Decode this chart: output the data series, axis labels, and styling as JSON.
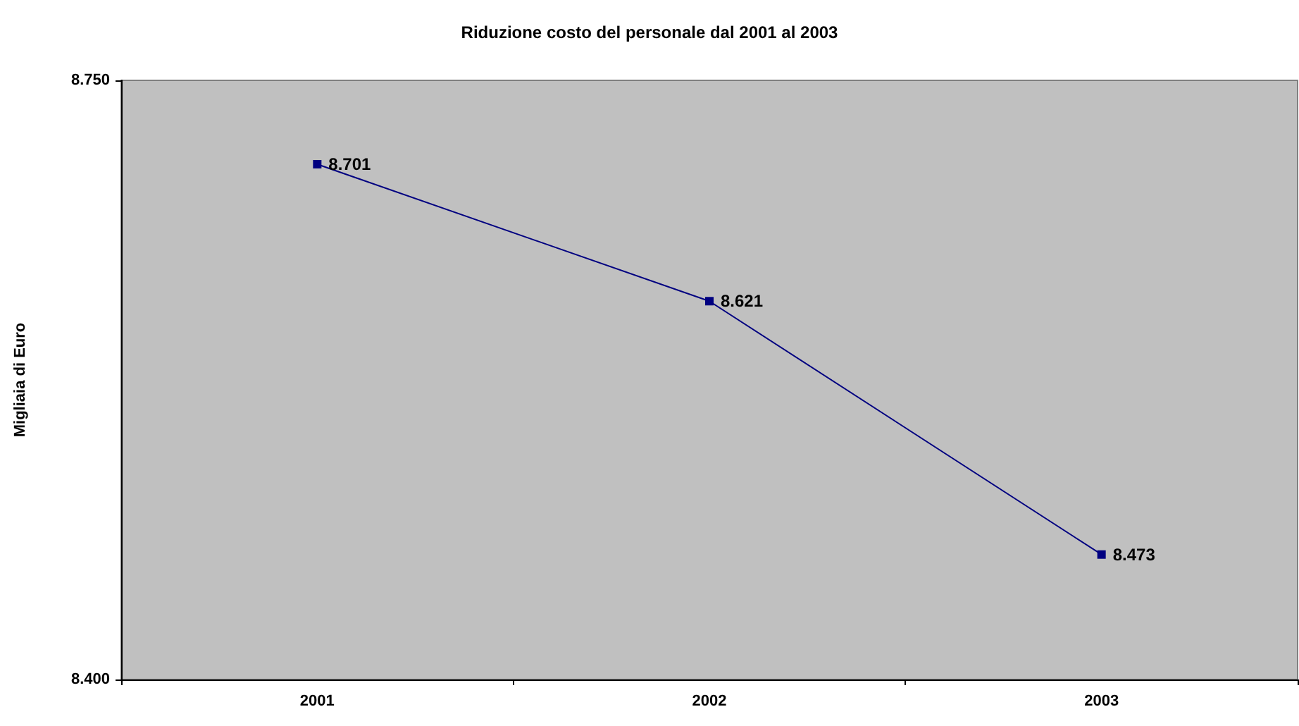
{
  "chart_data": {
    "type": "line",
    "title": "Riduzione costo del personale dal 2001 al 2003",
    "ylabel": "Migliaia di Euro",
    "categories": [
      "2001",
      "2002",
      "2003"
    ],
    "series": [
      {
        "color": "#000080",
        "values": [
          8701,
          8621,
          8473
        ],
        "value_labels": [
          "8.701",
          "8.621",
          "8.473"
        ]
      }
    ],
    "ylim": [
      8400,
      8750
    ],
    "yticks": [
      {
        "value": 8400,
        "label": "8.400"
      },
      {
        "value": 8750,
        "label": "8.750"
      }
    ],
    "grid": false,
    "marker": "square",
    "line_style": "solid"
  }
}
